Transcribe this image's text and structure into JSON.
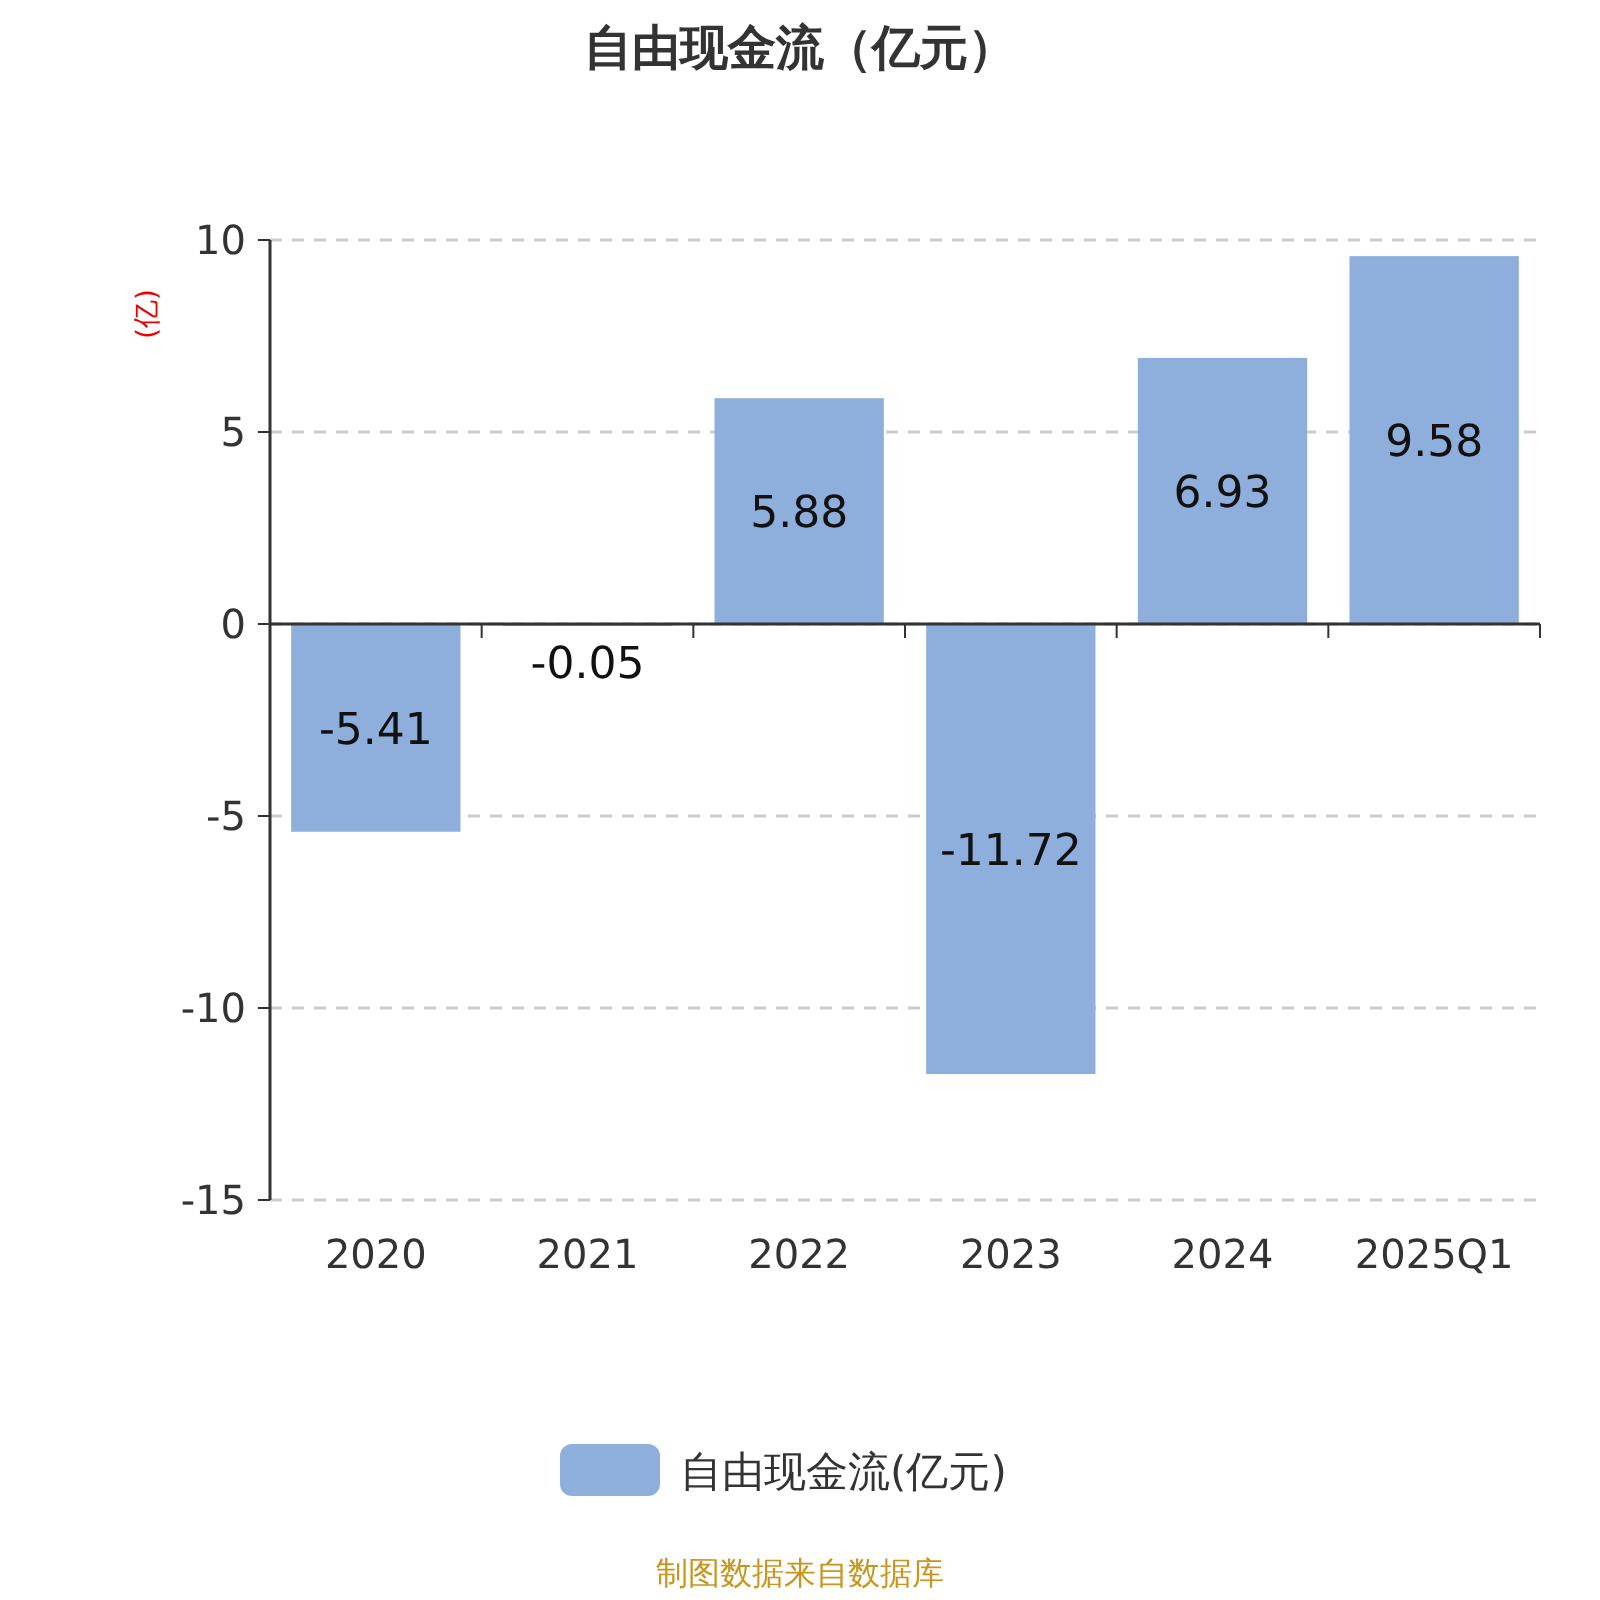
{
  "chart_data": {
    "type": "bar",
    "title": "自由现金流（亿元）",
    "ylabel": "(亿)",
    "categories": [
      "2020",
      "2021",
      "2022",
      "2023",
      "2024",
      "2025Q1"
    ],
    "series": [
      {
        "name": "自由现金流(亿元)",
        "color": "#8eaedb",
        "values": [
          -5.41,
          -0.05,
          5.88,
          -11.72,
          6.93,
          9.58
        ]
      }
    ],
    "ylim": [
      -15,
      10
    ],
    "yticks": [
      -15,
      -10,
      -5,
      0,
      5,
      10
    ],
    "grid": "y",
    "legend": "bottom",
    "data_labels": true,
    "annotations": [
      "制图数据来自数据库"
    ]
  }
}
